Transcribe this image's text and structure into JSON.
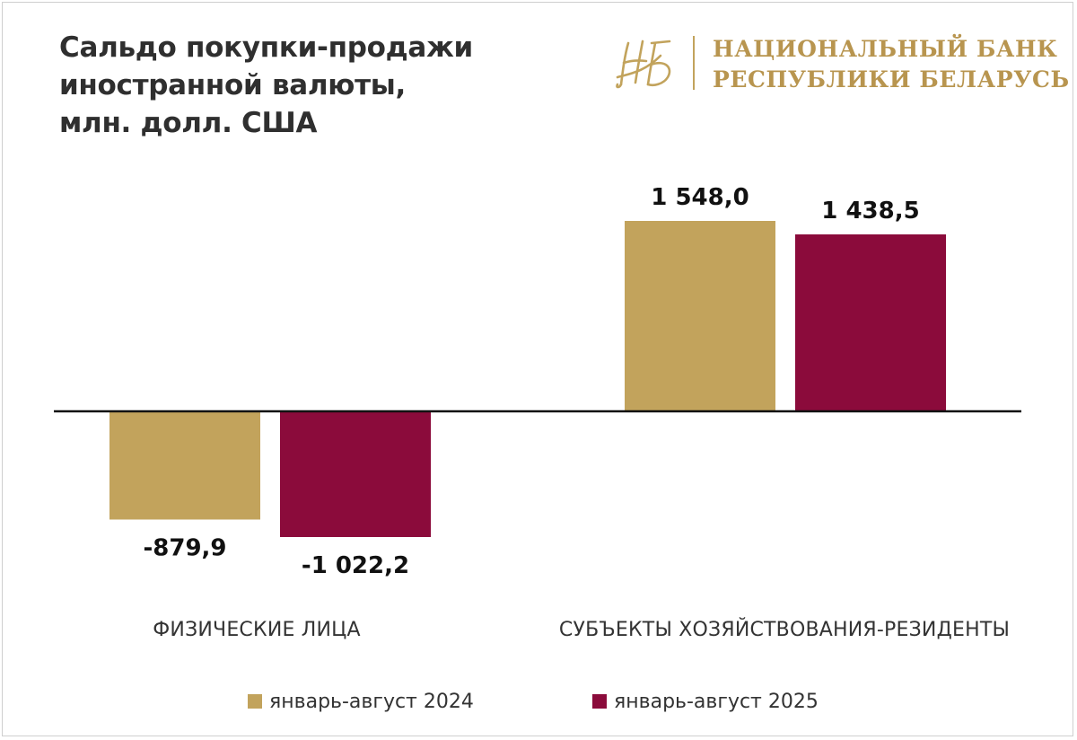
{
  "header": {
    "title_lines": [
      "Сальдо покупки-продажи",
      "иностранной валюты,",
      "млн. долл. США"
    ],
    "logo_lines": [
      "НАЦИОНАЛЬНЫЙ БАНК",
      "РЕСПУБЛИКИ БЕЛАРУСЬ"
    ]
  },
  "colors": {
    "series_2024": "#c2a35c",
    "series_2025": "#8b0b3b",
    "logo_gold": "#b8954f"
  },
  "chart_data": {
    "type": "bar",
    "categories": [
      "ФИЗИЧЕСКИЕ ЛИЦА",
      "СУБЪЕКТЫ ХОЗЯЙСТВОВАНИЯ-РЕЗИДЕНТЫ"
    ],
    "series": [
      {
        "name": "январь-август 2024",
        "values": [
          -879.9,
          1548.0
        ],
        "labels": [
          "-879,9",
          "1 548,0"
        ]
      },
      {
        "name": "январь-август 2025",
        "values": [
          -1022.2,
          1438.5
        ],
        "labels": [
          "-1 022,2",
          "1 438,5"
        ]
      }
    ],
    "title": "Сальдо покупки-продажи иностранной валюты, млн. долл. США",
    "xlabel": "",
    "ylabel": "",
    "ylim": [
      -1100,
      1600
    ],
    "grid": false,
    "legend": "bottom"
  }
}
